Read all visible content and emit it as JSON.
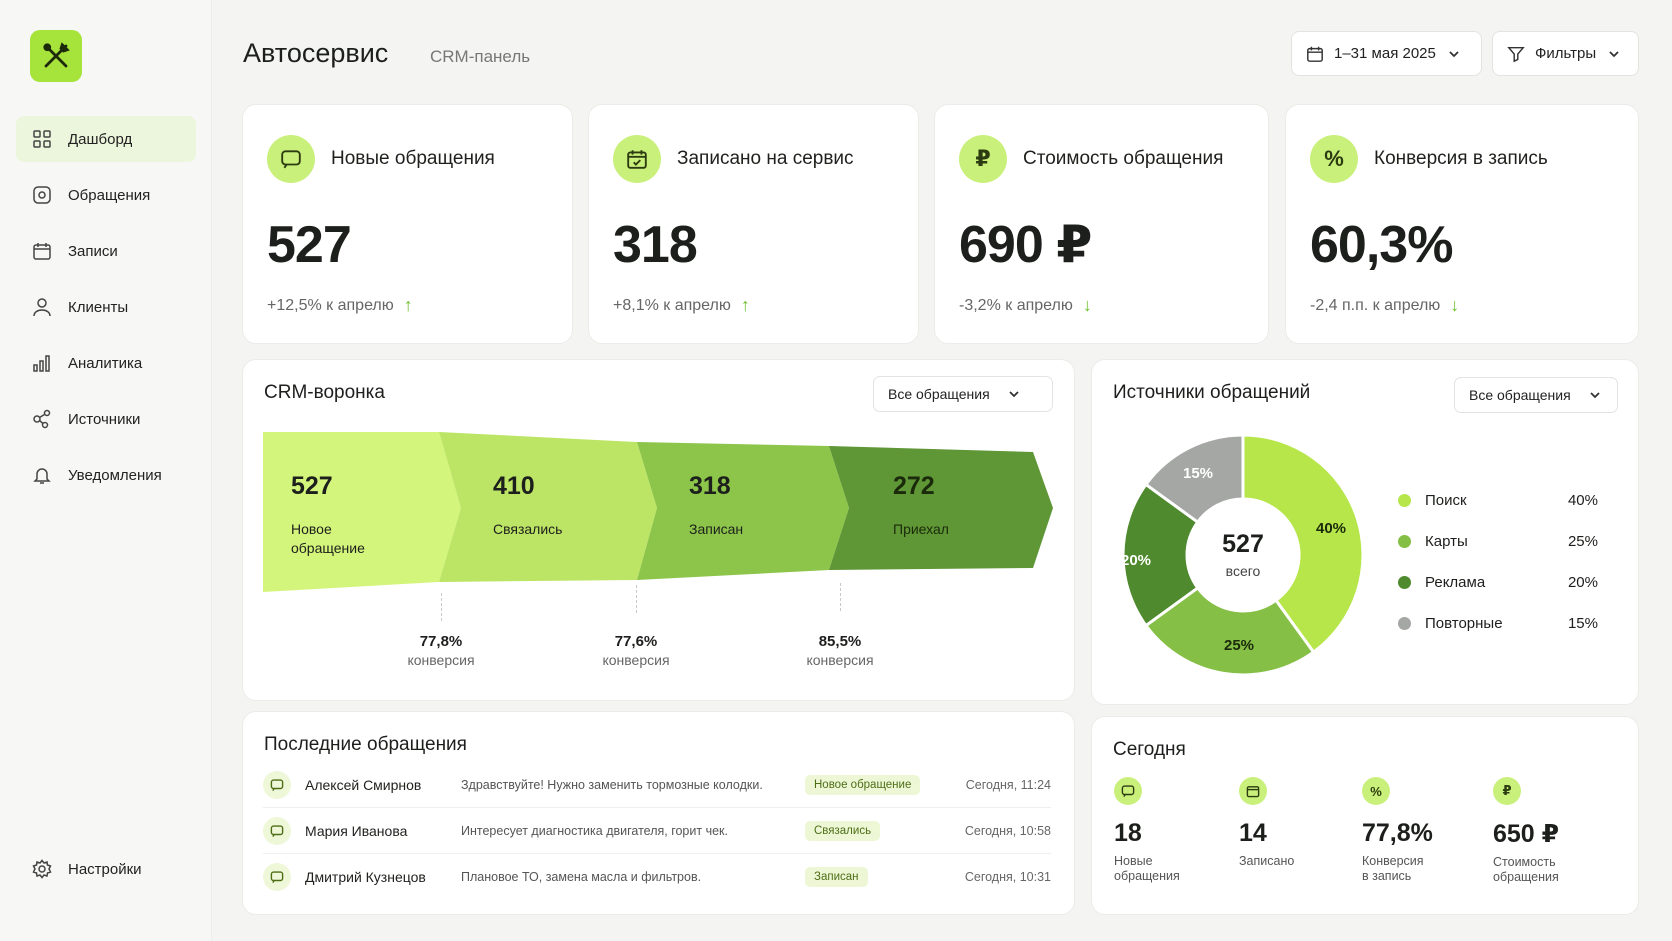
{
  "app": {
    "title": "Автосервис",
    "subtitle": "CRM-панель"
  },
  "header": {
    "date_range": "1–31 мая 2025",
    "filters_label": "Фильтры"
  },
  "sidebar": {
    "items": [
      {
        "label": "Дашборд",
        "icon": "grid-icon",
        "active": true
      },
      {
        "label": "Обращения",
        "icon": "chat-icon"
      },
      {
        "label": "Записи",
        "icon": "calendar-icon"
      },
      {
        "label": "Клиенты",
        "icon": "user-icon"
      },
      {
        "label": "Аналитика",
        "icon": "bar-chart-icon"
      },
      {
        "label": "Источники",
        "icon": "share-icon"
      },
      {
        "label": "Уведомления",
        "icon": "bell-icon"
      }
    ],
    "settings_label": "Настройки"
  },
  "kpis": [
    {
      "icon": "chat-icon",
      "label": "Новые обращения",
      "value": "527",
      "delta": "+12,5% к апрелю",
      "trend": "up"
    },
    {
      "icon": "calendar-icon",
      "label": "Записано на сервис",
      "value": "318",
      "delta": "+8,1% к апрелю",
      "trend": "up"
    },
    {
      "icon": "ruble-icon",
      "label": "Стоимость обращения",
      "value": "690 ₽",
      "delta": "-3,2% к апрелю",
      "trend": "down"
    },
    {
      "icon": "percent-icon",
      "label": "Конверсия в запись",
      "value": "60,3%",
      "delta": "-2,4 п.п. к апрелю",
      "trend": "down"
    }
  ],
  "funnel": {
    "title": "CRM-воронка",
    "filter": "Все обращения",
    "stages": [
      {
        "value": "527",
        "label": "Новое обращение",
        "color": "#d4f57b"
      },
      {
        "value": "410",
        "label": "Связались",
        "color": "#bce565"
      },
      {
        "value": "318",
        "label": "Записан",
        "color": "#8cc54a"
      },
      {
        "value": "272",
        "label": "Приехал",
        "color": "#5f9636"
      }
    ],
    "conversions": [
      {
        "value": "77,8%",
        "label": "конверсия"
      },
      {
        "value": "77,6%",
        "label": "конверсия"
      },
      {
        "value": "85,5%",
        "label": "конверсия"
      }
    ]
  },
  "sources": {
    "title": "Источники обращений",
    "filter": "Все обращения",
    "total": "527",
    "total_label": "всего",
    "items": [
      {
        "name": "Поиск",
        "pct": "40%",
        "value": 40,
        "color": "#b6e64a"
      },
      {
        "name": "Карты",
        "pct": "25%",
        "value": 25,
        "color": "#86bf45"
      },
      {
        "name": "Реклама",
        "pct": "20%",
        "value": 20,
        "color": "#4f8a2e"
      },
      {
        "name": "Повторные",
        "pct": "15%",
        "value": 15,
        "color": "#a5a7a4"
      }
    ]
  },
  "recent": {
    "title": "Последние обращения",
    "rows": [
      {
        "name": "Алексей Смирнов",
        "message": "Здравствуйте! Нужно заменить тормозные колодки.",
        "status": "Новое обращение",
        "time": "Сегодня, 11:24"
      },
      {
        "name": "Мария Иванова",
        "message": "Интересует диагностика двигателя, горит чек.",
        "status": "Связались",
        "time": "Сегодня, 10:58"
      },
      {
        "name": "Дмитрий Кузнецов",
        "message": "Плановое ТО, замена масла и фильтров.",
        "status": "Записан",
        "time": "Сегодня, 10:31"
      }
    ]
  },
  "today": {
    "title": "Сегодня",
    "items": [
      {
        "icon": "chat-icon",
        "value": "18",
        "label": "Новые\nобращения"
      },
      {
        "icon": "calendar-icon",
        "value": "14",
        "label": "Записано"
      },
      {
        "icon": "percent-icon",
        "value": "77,8%",
        "label": "Конверсия\nв запись"
      },
      {
        "icon": "ruble-icon",
        "value": "650 ₽",
        "label": "Стоимость\nобращения"
      }
    ]
  }
}
